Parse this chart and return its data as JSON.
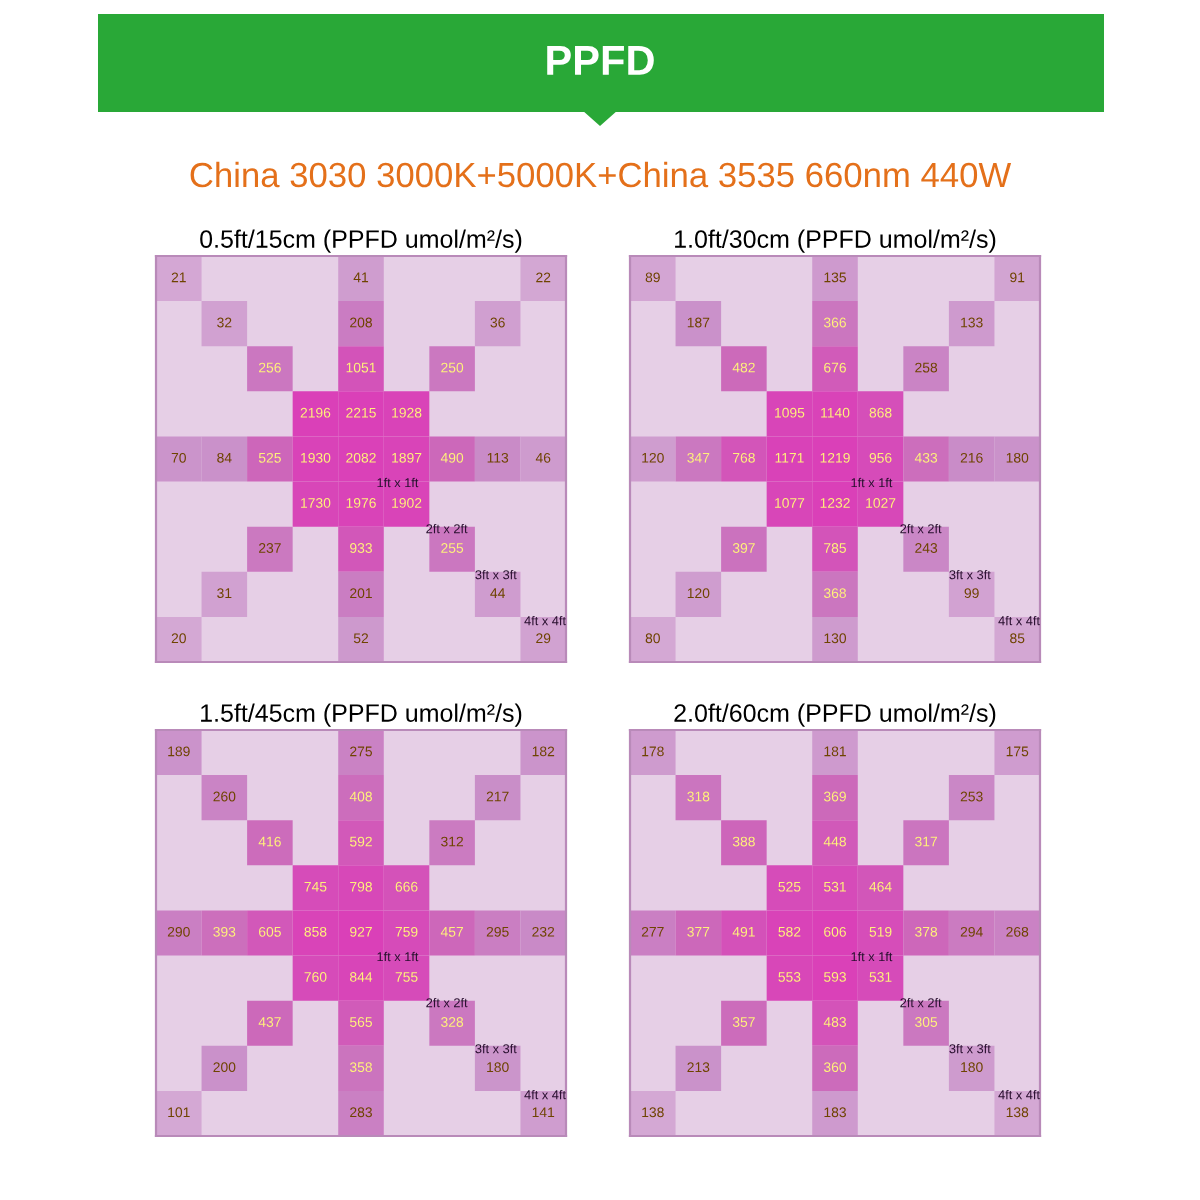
{
  "chart_data": [
    {
      "type": "other",
      "title": "PPFD",
      "subtitle": "China 3030 3000K+5000K+China 3535 660nm 440W"
    },
    {
      "type": "other",
      "title": "0.5ft/15cm (PPFD umol/m²/s)",
      "values": [
        21,
        41,
        22,
        32,
        208,
        36,
        256,
        1051,
        250,
        2196,
        2215,
        1928,
        70,
        84,
        525,
        1930,
        2082,
        1897,
        490,
        113,
        46,
        1730,
        1976,
        1902,
        237,
        933,
        255,
        31,
        201,
        44,
        20,
        52,
        29
      ],
      "data_labels": true,
      "annotations": [
        "1ft x 1ft",
        "2ft x 2ft",
        "3ft x 3ft",
        "4ft x 4ft"
      ]
    },
    {
      "type": "other",
      "title": "1.0ft/30cm (PPFD umol/m²/s)",
      "values": [
        89,
        135,
        91,
        187,
        366,
        133,
        482,
        676,
        258,
        1095,
        1140,
        868,
        120,
        347,
        768,
        1171,
        1219,
        956,
        433,
        216,
        180,
        1077,
        1232,
        1027,
        397,
        785,
        243,
        120,
        368,
        99,
        80,
        130,
        85
      ],
      "data_labels": true,
      "annotations": [
        "1ft x 1ft",
        "2ft x 2ft",
        "3ft x 3ft",
        "4ft x 4ft"
      ]
    },
    {
      "type": "other",
      "title": "1.5ft/45cm (PPFD umol/m²/s)",
      "values": [
        189,
        275,
        182,
        260,
        408,
        217,
        416,
        592,
        312,
        745,
        798,
        666,
        290,
        393,
        605,
        858,
        927,
        759,
        457,
        295,
        232,
        760,
        844,
        755,
        437,
        565,
        328,
        200,
        358,
        180,
        101,
        283,
        141
      ],
      "data_labels": true,
      "annotations": [
        "1ft x 1ft",
        "2ft x 2ft",
        "3ft x 3ft",
        "4ft x 4ft"
      ]
    },
    {
      "type": "other",
      "title": "2.0ft/60cm (PPFD umol/m²/s)",
      "values": [
        178,
        181,
        175,
        318,
        369,
        253,
        388,
        448,
        317,
        525,
        531,
        464,
        277,
        377,
        491,
        582,
        606,
        519,
        378,
        294,
        268,
        553,
        593,
        531,
        357,
        483,
        305,
        213,
        360,
        180,
        138,
        183,
        138
      ],
      "data_labels": true,
      "annotations": [
        "1ft x 1ft",
        "2ft x 2ft",
        "3ft x 3ft",
        "4ft x 4ft"
      ]
    }
  ]
}
